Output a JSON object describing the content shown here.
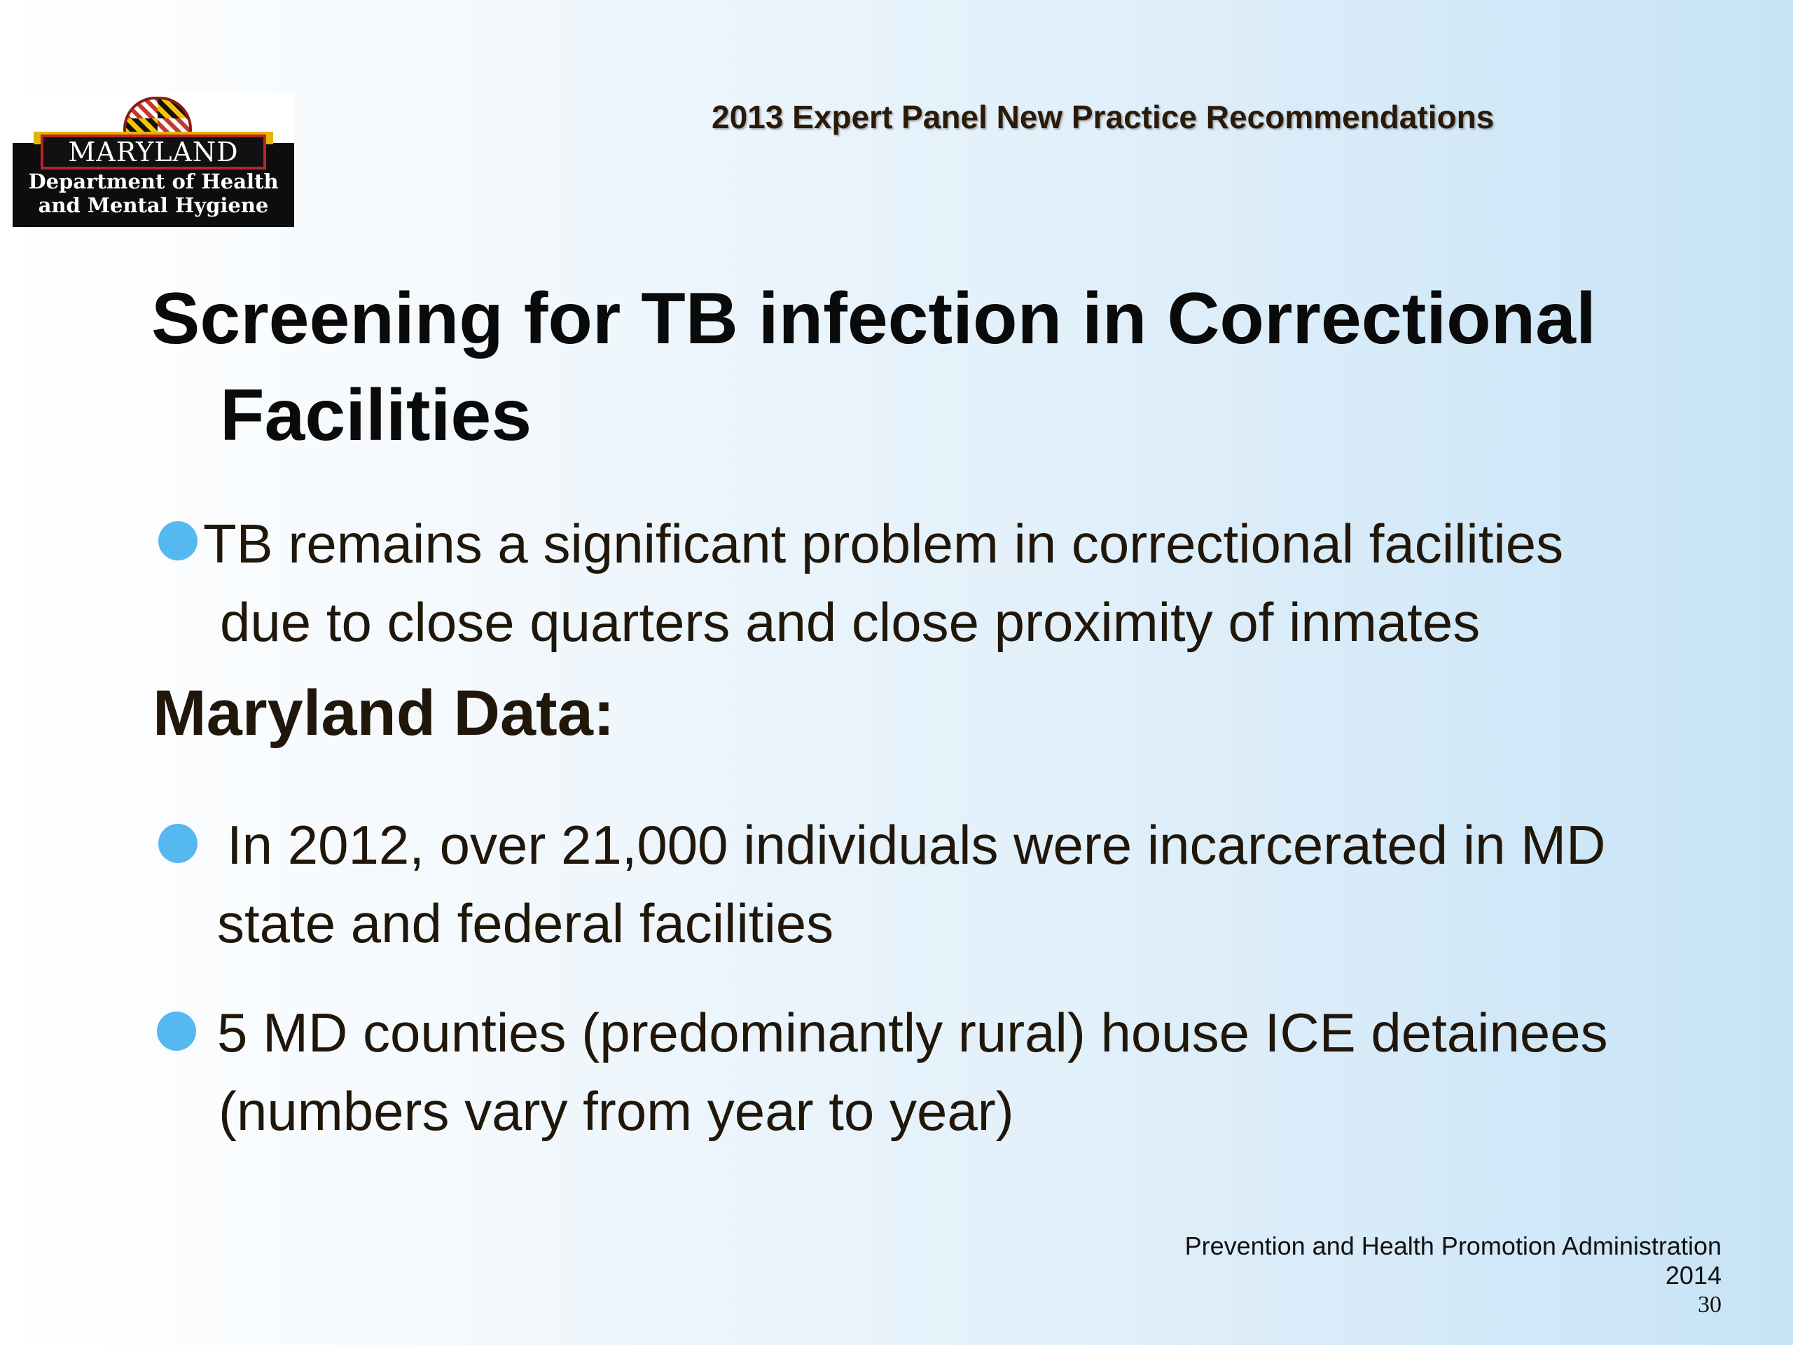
{
  "logo": {
    "name": "MARYLAND",
    "line1": "Department of Health",
    "line2": "and Mental Hygiene"
  },
  "header": {
    "title": "2013 Expert Panel New Practice Recommendations"
  },
  "title": {
    "line1": "Screening for TB infection in Correctional",
    "line2": "Facilities"
  },
  "bullets": [
    {
      "line1": "TB remains a significant problem in correctional facilities",
      "line2": "due to close quarters and close proximity of inmates"
    },
    {
      "line1": "In 2012, over 21,000 individuals were incarcerated in MD",
      "line2": "state and federal facilities"
    },
    {
      "line1": "5 MD counties (predominantly rural) house ICE detainees",
      "line2": "(numbers vary from year to year)"
    }
  ],
  "section_heading": "Maryland Data:",
  "footer": {
    "org": "Prevention and Health Promotion Administration",
    "year": "2014",
    "page": "30"
  },
  "colors": {
    "bullet": "#55b8f0",
    "background_right": "#c6e3f6",
    "text": "#20160a"
  }
}
